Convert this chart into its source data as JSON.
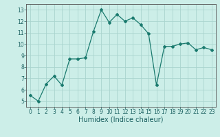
{
  "x": [
    0,
    1,
    2,
    3,
    4,
    5,
    6,
    7,
    8,
    9,
    10,
    11,
    12,
    13,
    14,
    15,
    16,
    17,
    18,
    19,
    20,
    21,
    22,
    23
  ],
  "y": [
    5.5,
    5.0,
    6.5,
    7.2,
    6.4,
    8.7,
    8.7,
    8.8,
    11.1,
    13.0,
    11.9,
    12.6,
    12.0,
    12.3,
    11.7,
    10.9,
    6.4,
    9.8,
    9.8,
    10.0,
    10.1,
    9.5,
    9.7,
    9.5
  ],
  "line_color": "#1a7a6e",
  "marker": "D",
  "marker_size": 2.0,
  "bg_color": "#cceee8",
  "grid_color": "#aad4ce",
  "xlabel": "Humidex (Indice chaleur)",
  "xlim": [
    -0.5,
    23.5
  ],
  "ylim": [
    4.5,
    13.5
  ],
  "yticks": [
    5,
    6,
    7,
    8,
    9,
    10,
    11,
    12,
    13
  ],
  "xticks": [
    0,
    1,
    2,
    3,
    4,
    5,
    6,
    7,
    8,
    9,
    10,
    11,
    12,
    13,
    14,
    15,
    16,
    17,
    18,
    19,
    20,
    21,
    22,
    23
  ],
  "tick_fontsize": 5.5,
  "xlabel_fontsize": 7.0,
  "line_width": 0.9
}
